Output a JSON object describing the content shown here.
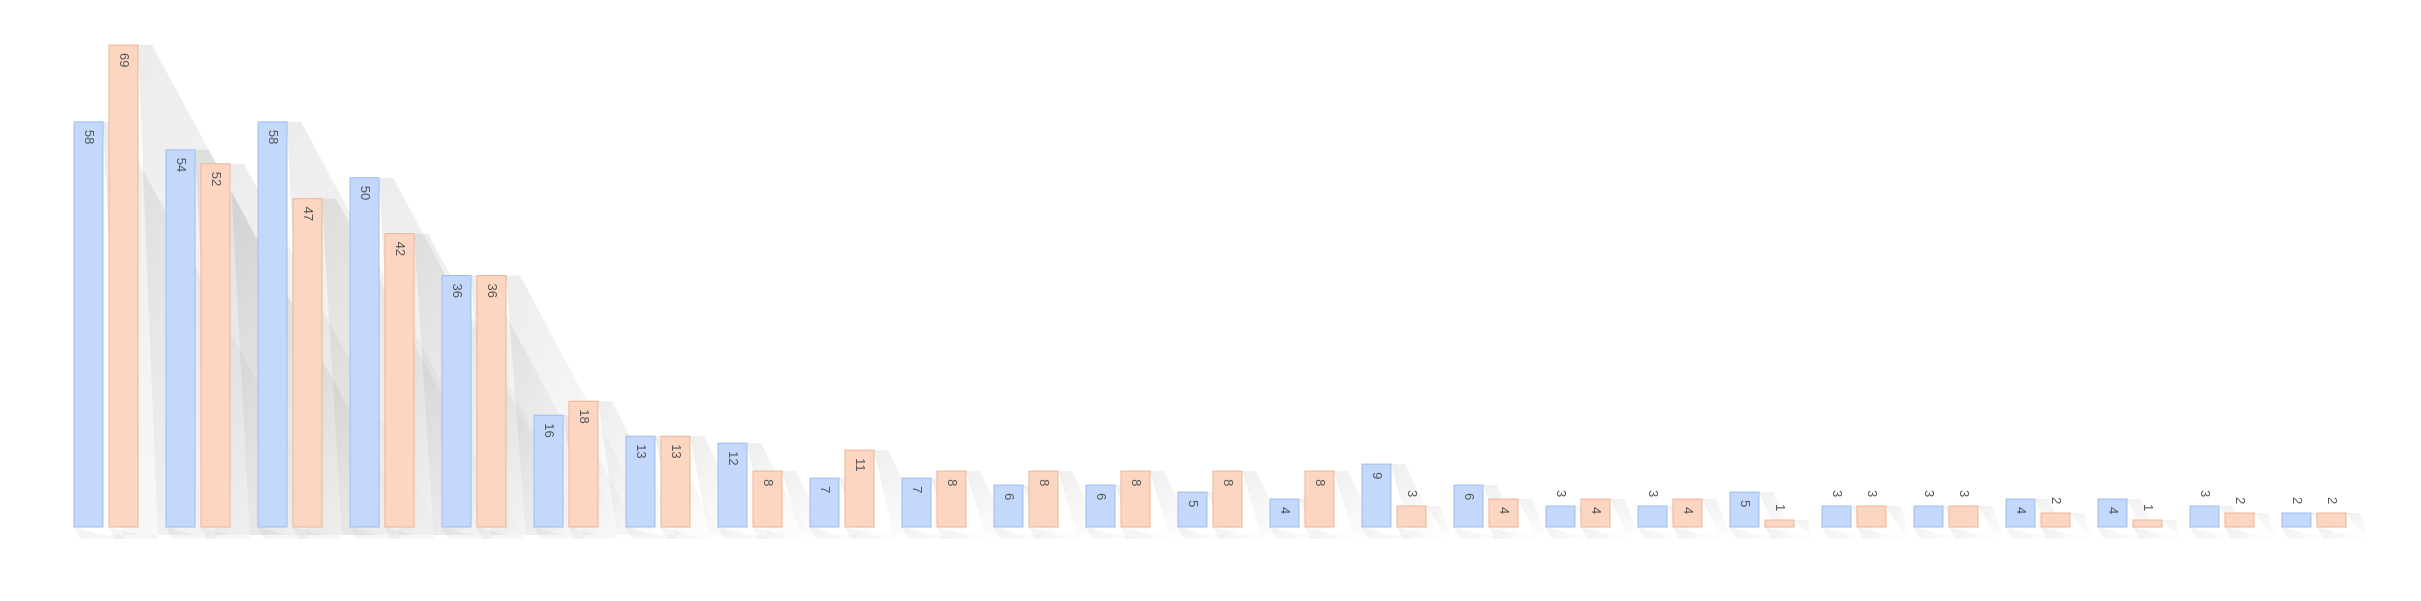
{
  "chart_data": {
    "type": "bar",
    "series": [
      {
        "color": "#c3d8fb",
        "values": [
          58,
          54,
          58,
          50,
          36,
          16,
          13,
          12,
          7,
          7,
          6,
          6,
          5,
          4,
          9,
          6,
          3,
          3,
          5,
          3,
          3,
          4,
          4,
          3,
          2
        ]
      },
      {
        "color": "#fdd6c2",
        "values": [
          69,
          52,
          47,
          42,
          36,
          18,
          13,
          8,
          11,
          8,
          8,
          8,
          8,
          8,
          3,
          4,
          4,
          4,
          1,
          3,
          3,
          2,
          1,
          2,
          2
        ]
      }
    ]
  }
}
